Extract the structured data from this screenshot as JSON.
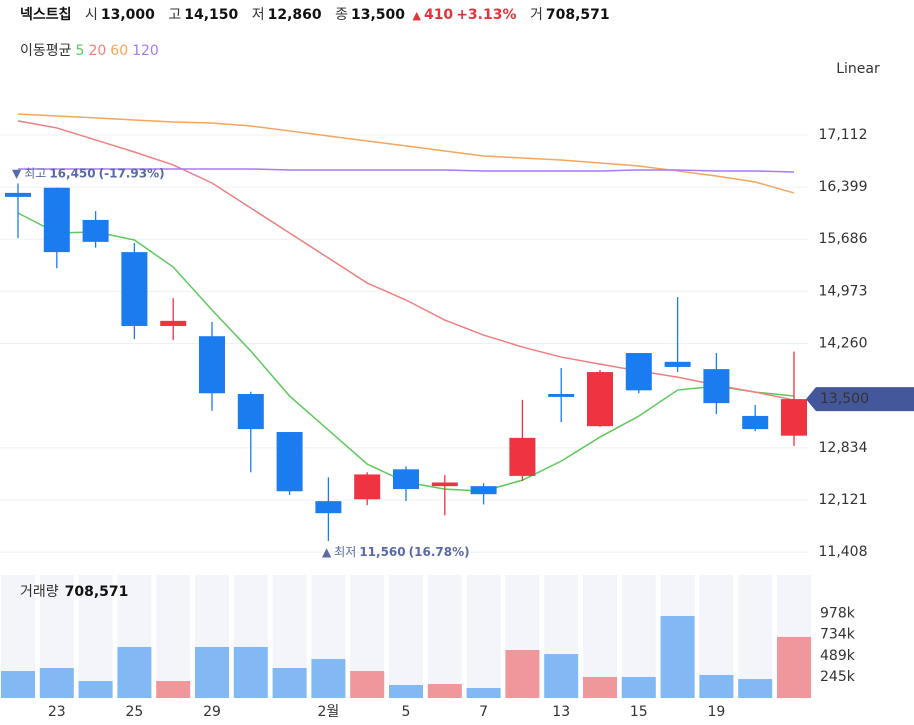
{
  "header": {
    "name": "넥스트칩",
    "open_label": "시",
    "open": "13,000",
    "high_label": "고",
    "high": "14,150",
    "low_label": "저",
    "low": "12,860",
    "close_label": "종",
    "close": "13,500",
    "change_arrow": "▲",
    "change": "410",
    "change_pct": "+3.13%",
    "volume_label": "거",
    "volume": "708,571"
  },
  "ma_legend_title": "이동평균",
  "scale_mode": "Linear",
  "chart_data": {
    "type": "candlestick",
    "categories": [
      null,
      "23",
      null,
      "25",
      null,
      "29",
      null,
      null,
      "2월",
      null,
      "5",
      null,
      "7",
      null,
      "13",
      null,
      "15",
      null,
      "19",
      null,
      null
    ],
    "open": [
      16320,
      16390,
      15950,
      15510,
      14500,
      14360,
      13570,
      13050,
      12105,
      12130,
      12540,
      12310,
      12310,
      12450,
      13570,
      13130,
      14130,
      14010,
      13910,
      13270,
      13000
    ],
    "high": [
      16450,
      16390,
      16070,
      15635,
      14880,
      14555,
      13600,
      13050,
      12430,
      12500,
      12580,
      12460,
      12350,
      13490,
      13925,
      13900,
      14130,
      14895,
      14130,
      13420,
      14150
    ],
    "low": [
      15700,
      15290,
      15570,
      14320,
      14310,
      13340,
      12500,
      12190,
      11560,
      12050,
      12105,
      11910,
      12060,
      12380,
      13185,
      13120,
      13580,
      13870,
      13295,
      13060,
      12860
    ],
    "close": [
      16265,
      15510,
      15650,
      14500,
      14570,
      13580,
      13090,
      12240,
      11940,
      12470,
      12270,
      12360,
      12200,
      12970,
      13530,
      13870,
      13620,
      13940,
      13445,
      13090,
      13500
    ],
    "up_color": "#ef3340",
    "down_color": "#1b7cf0",
    "ma_series": [
      {
        "name": "5",
        "color": "#5cc95c",
        "values": [
          16045,
          15771,
          15785,
          15676,
          15306,
          14718,
          14157,
          13542,
          13076,
          12611,
          12365,
          12269,
          12242,
          12392,
          12652,
          12981,
          13268,
          13624,
          13678,
          13596,
          13542
        ]
      },
      {
        "name": "20",
        "color": "#ef7f7f",
        "values": [
          17304,
          17208,
          17044,
          16879,
          16702,
          16455,
          16113,
          15771,
          15429,
          15087,
          14855,
          14581,
          14376,
          14212,
          14075,
          13979,
          13884,
          13801,
          13692,
          13596,
          13487
        ]
      },
      {
        "name": "60",
        "color": "#f5a55c",
        "values": [
          17399,
          17372,
          17345,
          17317,
          17290,
          17276,
          17235,
          17167,
          17098,
          17030,
          16962,
          16893,
          16825,
          16797,
          16770,
          16729,
          16688,
          16620,
          16551,
          16469,
          16319
        ]
      },
      {
        "name": "120",
        "color": "#a97af0",
        "values": [
          16647,
          16647,
          16647,
          16647,
          16647,
          16647,
          16647,
          16633,
          16633,
          16633,
          16633,
          16633,
          16620,
          16620,
          16620,
          16620,
          16633,
          16633,
          16620,
          16620,
          16606
        ]
      }
    ],
    "ylim": [
      11300,
      17590
    ],
    "yticks": [
      {
        "value": 11408,
        "label": "11,408"
      },
      {
        "value": 12121,
        "label": "12,121"
      },
      {
        "value": 12834,
        "label": "12,834"
      },
      {
        "value": 14260,
        "label": "14,260"
      },
      {
        "value": 14973,
        "label": "14,973"
      },
      {
        "value": 15686,
        "label": "15,686"
      },
      {
        "value": 16399,
        "label": "16,399"
      },
      {
        "value": 17112,
        "label": "17,112"
      }
    ],
    "price_tag": {
      "value": 13500,
      "label": "13,500"
    },
    "max_annotation": {
      "arrow": "▼",
      "label": "최고",
      "value": "16,450",
      "pct": "(-17.93%)"
    },
    "min_annotation": {
      "arrow": "▲",
      "label": "최저",
      "value": "11,560",
      "pct": "(16.78%)"
    },
    "volume_title": "거래량",
    "volume_total": "708,571",
    "volume": [
      313000,
      348000,
      197000,
      592000,
      197000,
      592000,
      592000,
      348000,
      452000,
      313000,
      151000,
      162000,
      116000,
      557000,
      510000,
      244000,
      244000,
      951000,
      267000,
      220000,
      708571
    ],
    "volume_up_color": "#f0979c",
    "volume_down_color": "#82b9f5",
    "vlim": [
      0,
      1427000
    ],
    "vticks": [
      {
        "value": 245000,
        "label": "245k"
      },
      {
        "value": 489000,
        "label": "489k"
      },
      {
        "value": 734000,
        "label": "734k"
      },
      {
        "value": 978000,
        "label": "978k"
      }
    ],
    "grid": true
  }
}
